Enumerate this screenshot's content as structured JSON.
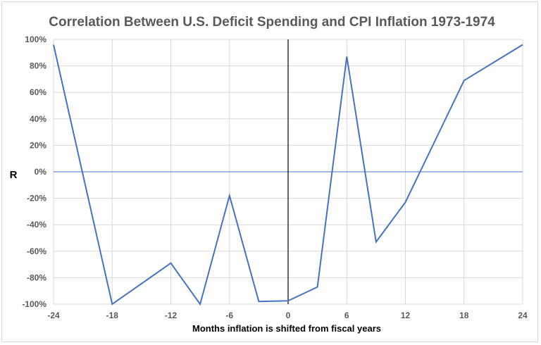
{
  "chart_data": {
    "type": "line",
    "title": "Correlation Between U.S. Deficit Spending and CPI Inflation 1973-1974",
    "xlabel": "Months inflation is shifted from fiscal years",
    "ylabel": "R",
    "x": [
      -24,
      -18,
      -12,
      -9,
      -6,
      -3,
      0,
      3,
      6,
      9,
      12,
      18,
      24
    ],
    "series": [
      {
        "values": [
          96,
          -100,
          -69,
          -100,
          -18,
          -98,
          -97.5,
          -87,
          87,
          -53,
          -23,
          69,
          96
        ]
      }
    ],
    "xlim": [
      -24,
      24
    ],
    "ylim": [
      -100,
      100
    ],
    "x_ticks": [
      -24,
      -18,
      -12,
      -6,
      0,
      6,
      12,
      18,
      24
    ],
    "x_tick_labels": [
      "-24",
      "-18",
      "-12",
      "-6",
      "0",
      "6",
      "12",
      "18",
      "24"
    ],
    "y_ticks": [
      100,
      80,
      60,
      40,
      20,
      0,
      -20,
      -40,
      -60,
      -80,
      -100
    ],
    "y_tick_labels": [
      "100%",
      "80%",
      "60%",
      "40%",
      "20%",
      "0%",
      "-20%",
      "-40%",
      "-60%",
      "-80%",
      "-100%"
    ],
    "grid": true,
    "vertical_reference_line_x": 0,
    "line_color": "#4472c4",
    "zero_line_color": "#4472c4",
    "vertical_line_color": "#000000",
    "grid_color": "#d9d9d9"
  }
}
